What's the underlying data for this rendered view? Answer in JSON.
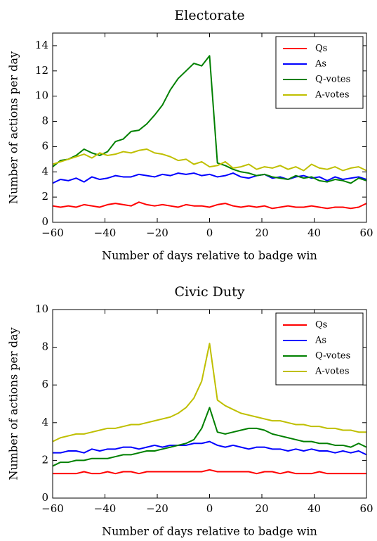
{
  "chart_data": [
    {
      "type": "line",
      "title": "Electorate",
      "xlabel": "Number of days relative to badge win",
      "ylabel": "Number of actions per day",
      "x": [
        -60,
        -57,
        -54,
        -51,
        -48,
        -45,
        -42,
        -39,
        -36,
        -33,
        -30,
        -27,
        -24,
        -21,
        -18,
        -15,
        -12,
        -9,
        -6,
        -3,
        0,
        3,
        6,
        9,
        12,
        15,
        18,
        21,
        24,
        27,
        30,
        33,
        36,
        39,
        42,
        45,
        48,
        51,
        54,
        57,
        60
      ],
      "series": [
        {
          "name": "Qs",
          "color": "#ff0000",
          "values": [
            1.3,
            1.2,
            1.3,
            1.2,
            1.4,
            1.3,
            1.2,
            1.4,
            1.5,
            1.4,
            1.3,
            1.6,
            1.4,
            1.3,
            1.4,
            1.3,
            1.2,
            1.4,
            1.3,
            1.3,
            1.2,
            1.4,
            1.5,
            1.3,
            1.2,
            1.3,
            1.2,
            1.3,
            1.1,
            1.2,
            1.3,
            1.2,
            1.2,
            1.3,
            1.2,
            1.1,
            1.2,
            1.2,
            1.1,
            1.2,
            1.5
          ]
        },
        {
          "name": "As",
          "color": "#0000ff",
          "values": [
            3.1,
            3.4,
            3.3,
            3.5,
            3.2,
            3.6,
            3.4,
            3.5,
            3.7,
            3.6,
            3.6,
            3.8,
            3.7,
            3.6,
            3.8,
            3.7,
            3.9,
            3.8,
            3.9,
            3.7,
            3.8,
            3.6,
            3.7,
            3.9,
            3.6,
            3.5,
            3.7,
            3.8,
            3.5,
            3.6,
            3.4,
            3.6,
            3.7,
            3.5,
            3.6,
            3.3,
            3.6,
            3.4,
            3.5,
            3.6,
            3.4
          ]
        },
        {
          "name": "Q-votes",
          "color": "#008000",
          "values": [
            4.4,
            4.9,
            5.0,
            5.3,
            5.8,
            5.5,
            5.3,
            5.6,
            6.4,
            6.6,
            7.2,
            7.3,
            7.8,
            8.5,
            9.3,
            10.5,
            11.4,
            12.0,
            12.6,
            12.4,
            13.2,
            4.7,
            4.5,
            4.2,
            4.0,
            3.9,
            3.7,
            3.8,
            3.6,
            3.5,
            3.4,
            3.7,
            3.5,
            3.6,
            3.3,
            3.2,
            3.4,
            3.3,
            3.1,
            3.5,
            3.3
          ]
        },
        {
          "name": "A-votes",
          "color": "#bfbf00",
          "values": [
            4.6,
            4.8,
            5.0,
            5.2,
            5.4,
            5.1,
            5.5,
            5.3,
            5.4,
            5.6,
            5.5,
            5.7,
            5.8,
            5.5,
            5.4,
            5.2,
            4.9,
            5.0,
            4.6,
            4.8,
            4.4,
            4.5,
            4.8,
            4.3,
            4.4,
            4.6,
            4.2,
            4.4,
            4.3,
            4.5,
            4.2,
            4.4,
            4.1,
            4.6,
            4.3,
            4.2,
            4.4,
            4.1,
            4.3,
            4.4,
            4.1
          ]
        }
      ],
      "xlim": [
        -60,
        60
      ],
      "xticks": [
        {
          "value": -60,
          "label": "−60"
        },
        {
          "value": -40,
          "label": "−40"
        },
        {
          "value": -20,
          "label": "−20"
        },
        0,
        20,
        40,
        60
      ],
      "ylim": [
        0,
        15
      ],
      "yticks": [
        0,
        2,
        4,
        6,
        8,
        10,
        12,
        14
      ],
      "legend": "upper right"
    },
    {
      "type": "line",
      "title": "Civic Duty",
      "xlabel": "Number of days relative to badge win",
      "ylabel": "Number of actions per day",
      "x": [
        -60,
        -57,
        -54,
        -51,
        -48,
        -45,
        -42,
        -39,
        -36,
        -33,
        -30,
        -27,
        -24,
        -21,
        -18,
        -15,
        -12,
        -9,
        -6,
        -3,
        0,
        3,
        6,
        9,
        12,
        15,
        18,
        21,
        24,
        27,
        30,
        33,
        36,
        39,
        42,
        45,
        48,
        51,
        54,
        57,
        60
      ],
      "series": [
        {
          "name": "Qs",
          "color": "#ff0000",
          "values": [
            1.3,
            1.3,
            1.3,
            1.3,
            1.4,
            1.3,
            1.3,
            1.4,
            1.3,
            1.4,
            1.4,
            1.3,
            1.4,
            1.4,
            1.4,
            1.4,
            1.4,
            1.4,
            1.4,
            1.4,
            1.5,
            1.4,
            1.4,
            1.4,
            1.4,
            1.4,
            1.3,
            1.4,
            1.4,
            1.3,
            1.4,
            1.3,
            1.3,
            1.3,
            1.4,
            1.3,
            1.3,
            1.3,
            1.3,
            1.3,
            1.3
          ]
        },
        {
          "name": "As",
          "color": "#0000ff",
          "values": [
            2.4,
            2.4,
            2.5,
            2.5,
            2.4,
            2.6,
            2.5,
            2.6,
            2.6,
            2.7,
            2.7,
            2.6,
            2.7,
            2.8,
            2.7,
            2.8,
            2.8,
            2.8,
            2.9,
            2.9,
            3.0,
            2.8,
            2.7,
            2.8,
            2.7,
            2.6,
            2.7,
            2.7,
            2.6,
            2.6,
            2.5,
            2.6,
            2.5,
            2.6,
            2.5,
            2.5,
            2.4,
            2.5,
            2.4,
            2.5,
            2.3
          ]
        },
        {
          "name": "Q-votes",
          "color": "#008000",
          "values": [
            1.7,
            1.9,
            1.9,
            2.0,
            2.0,
            2.1,
            2.1,
            2.1,
            2.2,
            2.3,
            2.3,
            2.4,
            2.5,
            2.5,
            2.6,
            2.7,
            2.8,
            2.9,
            3.1,
            3.7,
            4.8,
            3.5,
            3.4,
            3.5,
            3.6,
            3.7,
            3.7,
            3.6,
            3.4,
            3.3,
            3.2,
            3.1,
            3.0,
            3.0,
            2.9,
            2.9,
            2.8,
            2.8,
            2.7,
            2.9,
            2.7
          ]
        },
        {
          "name": "A-votes",
          "color": "#bfbf00",
          "values": [
            3.0,
            3.2,
            3.3,
            3.4,
            3.4,
            3.5,
            3.6,
            3.7,
            3.7,
            3.8,
            3.9,
            3.9,
            4.0,
            4.1,
            4.2,
            4.3,
            4.5,
            4.8,
            5.3,
            6.2,
            8.2,
            5.2,
            4.9,
            4.7,
            4.5,
            4.4,
            4.3,
            4.2,
            4.1,
            4.1,
            4.0,
            3.9,
            3.9,
            3.8,
            3.8,
            3.7,
            3.7,
            3.6,
            3.6,
            3.5,
            3.5
          ]
        }
      ],
      "xlim": [
        -60,
        60
      ],
      "xticks": [
        {
          "value": -60,
          "label": "−60"
        },
        {
          "value": -40,
          "label": "−40"
        },
        {
          "value": -20,
          "label": "−20"
        },
        0,
        20,
        40,
        60
      ],
      "ylim": [
        0,
        10
      ],
      "yticks": [
        0,
        2,
        4,
        6,
        8,
        10
      ],
      "legend": "upper right"
    }
  ]
}
